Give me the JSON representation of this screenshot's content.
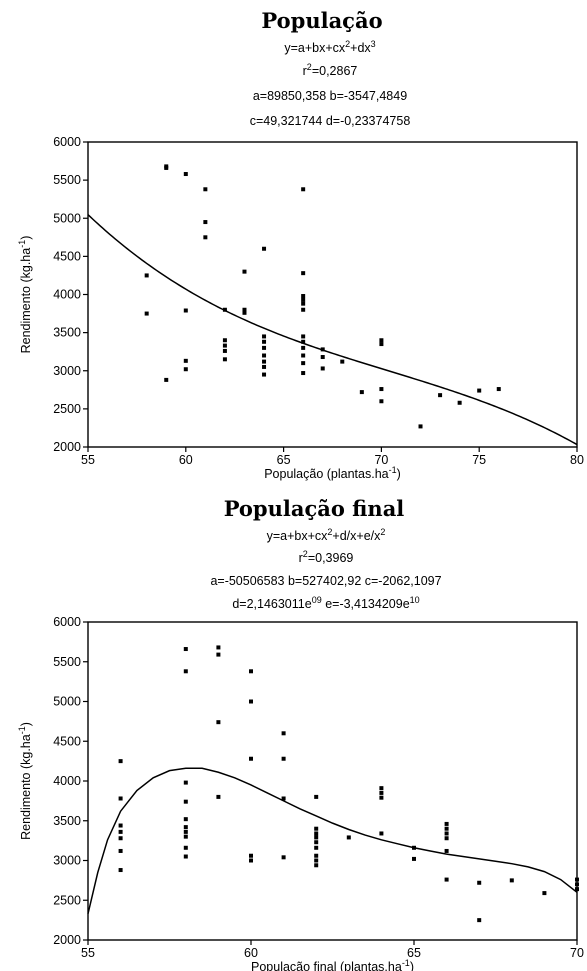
{
  "chart_data": [
    {
      "type": "scatter",
      "title": "População",
      "equation_lines": [
        [
          "y=a+bx+cx",
          {
            "sup": "2"
          },
          "+dx",
          {
            "sup": "3"
          }
        ],
        [
          "r",
          {
            "sup": "2"
          },
          "=0,2867"
        ],
        [
          "a=89850,358 b=-3547,4849"
        ],
        [
          "c=49,321744 d=-0,23374758"
        ]
      ],
      "xlabel": "População (plantas.ha-1)",
      "ylabel": "Rendimento (kg.ha-1)",
      "xlim": [
        55,
        80
      ],
      "ylim": [
        2000,
        6000
      ],
      "x_ticks": [
        55,
        60,
        65,
        70,
        75,
        80
      ],
      "y_ticks": [
        2000,
        2500,
        3000,
        3500,
        4000,
        4500,
        5000,
        5500,
        6000
      ],
      "fit": {
        "kind": "cubic",
        "coefficients": [
          89850.358,
          -3547.4849,
          49.321744,
          -0.23374758
        ]
      },
      "points": [
        [
          58,
          4250
        ],
        [
          58,
          3750
        ],
        [
          59,
          5680
        ],
        [
          59,
          5660
        ],
        [
          59,
          2880
        ],
        [
          60,
          5580
        ],
        [
          60,
          3790
        ],
        [
          60,
          3130
        ],
        [
          60,
          3020
        ],
        [
          61,
          5380
        ],
        [
          61,
          4950
        ],
        [
          61,
          4750
        ],
        [
          62,
          3800
        ],
        [
          62,
          3400
        ],
        [
          62,
          3330
        ],
        [
          62,
          3260
        ],
        [
          62,
          3150
        ],
        [
          63,
          4300
        ],
        [
          63,
          3800
        ],
        [
          63,
          3760
        ],
        [
          64,
          4600
        ],
        [
          64,
          3450
        ],
        [
          64,
          3380
        ],
        [
          64,
          3300
        ],
        [
          64,
          3200
        ],
        [
          64,
          3120
        ],
        [
          64,
          3050
        ],
        [
          64,
          2950
        ],
        [
          66,
          5380
        ],
        [
          66,
          4280
        ],
        [
          66,
          3980
        ],
        [
          66,
          3930
        ],
        [
          66,
          3880
        ],
        [
          66,
          3800
        ],
        [
          66,
          3450
        ],
        [
          66,
          3380
        ],
        [
          66,
          3300
        ],
        [
          66,
          3200
        ],
        [
          66,
          3100
        ],
        [
          66,
          2970
        ],
        [
          67,
          3280
        ],
        [
          67,
          3180
        ],
        [
          67,
          3030
        ],
        [
          68,
          3120
        ],
        [
          69,
          2720
        ],
        [
          70,
          3400
        ],
        [
          70,
          3350
        ],
        [
          70,
          2760
        ],
        [
          70,
          2600
        ],
        [
          72,
          2270
        ],
        [
          73,
          2680
        ],
        [
          74,
          2580
        ],
        [
          75,
          2740
        ],
        [
          76,
          2760
        ]
      ]
    },
    {
      "type": "scatter",
      "title": "População final",
      "equation_lines": [
        [
          "y=a+bx+cx",
          {
            "sup": "2"
          },
          "+d/x+e/x",
          {
            "sup": "2"
          }
        ],
        [
          "r",
          {
            "sup": "2"
          },
          "=0,3969"
        ],
        [
          "a=-50506583 b=527402,92 c=-2062,1097"
        ],
        [
          "d=2,1463011e",
          {
            "sup": "09"
          },
          " e=-3,4134209e",
          {
            "sup": "10"
          }
        ]
      ],
      "xlabel": "População final (plantas.ha-1)",
      "ylabel": "Rendimento (kg.ha-1)",
      "xlim": [
        55,
        70
      ],
      "ylim": [
        2000,
        6000
      ],
      "x_ticks": [
        55,
        60,
        65,
        70
      ],
      "y_ticks": [
        2000,
        2500,
        3000,
        3500,
        4000,
        4500,
        5000,
        5500,
        6000
      ],
      "fit_points": [
        [
          55.0,
          2330
        ],
        [
          55.3,
          2850
        ],
        [
          55.6,
          3260
        ],
        [
          56.0,
          3620
        ],
        [
          56.5,
          3880
        ],
        [
          57.0,
          4040
        ],
        [
          57.5,
          4130
        ],
        [
          58.0,
          4160
        ],
        [
          58.5,
          4160
        ],
        [
          59.0,
          4110
        ],
        [
          59.5,
          4040
        ],
        [
          60.0,
          3950
        ],
        [
          60.5,
          3850
        ],
        [
          61.0,
          3750
        ],
        [
          61.5,
          3650
        ],
        [
          62.0,
          3560
        ],
        [
          62.5,
          3470
        ],
        [
          63.0,
          3390
        ],
        [
          63.5,
          3320
        ],
        [
          64.0,
          3260
        ],
        [
          64.5,
          3210
        ],
        [
          65.0,
          3160
        ],
        [
          65.5,
          3120
        ],
        [
          66.0,
          3080
        ],
        [
          66.5,
          3050
        ],
        [
          67.0,
          3020
        ],
        [
          67.5,
          2990
        ],
        [
          68.0,
          2960
        ],
        [
          68.5,
          2920
        ],
        [
          69.0,
          2860
        ],
        [
          69.5,
          2760
        ],
        [
          70.0,
          2600
        ]
      ],
      "points": [
        [
          56,
          4250
        ],
        [
          56,
          3780
        ],
        [
          56,
          3440
        ],
        [
          56,
          3360
        ],
        [
          56,
          3280
        ],
        [
          56,
          3120
        ],
        [
          56,
          2880
        ],
        [
          58,
          5660
        ],
        [
          58,
          5380
        ],
        [
          58,
          3980
        ],
        [
          58,
          3740
        ],
        [
          58,
          3520
        ],
        [
          58,
          3420
        ],
        [
          58,
          3360
        ],
        [
          58,
          3300
        ],
        [
          58,
          3160
        ],
        [
          58,
          3050
        ],
        [
          59,
          5680
        ],
        [
          59,
          5590
        ],
        [
          59,
          4740
        ],
        [
          59,
          3800
        ],
        [
          60,
          5380
        ],
        [
          60,
          5000
        ],
        [
          60,
          4280
        ],
        [
          60,
          3060
        ],
        [
          60,
          3000
        ],
        [
          61,
          4600
        ],
        [
          61,
          4280
        ],
        [
          61,
          3780
        ],
        [
          61,
          3040
        ],
        [
          62,
          3800
        ],
        [
          62,
          3400
        ],
        [
          62,
          3340
        ],
        [
          62,
          3290
        ],
        [
          62,
          3230
        ],
        [
          62,
          3160
        ],
        [
          62,
          3060
        ],
        [
          62,
          3000
        ],
        [
          62,
          2940
        ],
        [
          63,
          3290
        ],
        [
          64,
          3910
        ],
        [
          64,
          3850
        ],
        [
          64,
          3790
        ],
        [
          64,
          3340
        ],
        [
          65,
          3160
        ],
        [
          65,
          3020
        ],
        [
          66,
          3460
        ],
        [
          66,
          3400
        ],
        [
          66,
          3340
        ],
        [
          66,
          3280
        ],
        [
          66,
          3120
        ],
        [
          66,
          2760
        ],
        [
          67,
          2720
        ],
        [
          67,
          2250
        ],
        [
          68,
          2750
        ],
        [
          69,
          2590
        ],
        [
          70,
          2760
        ],
        [
          70,
          2700
        ],
        [
          70,
          2640
        ]
      ]
    }
  ]
}
